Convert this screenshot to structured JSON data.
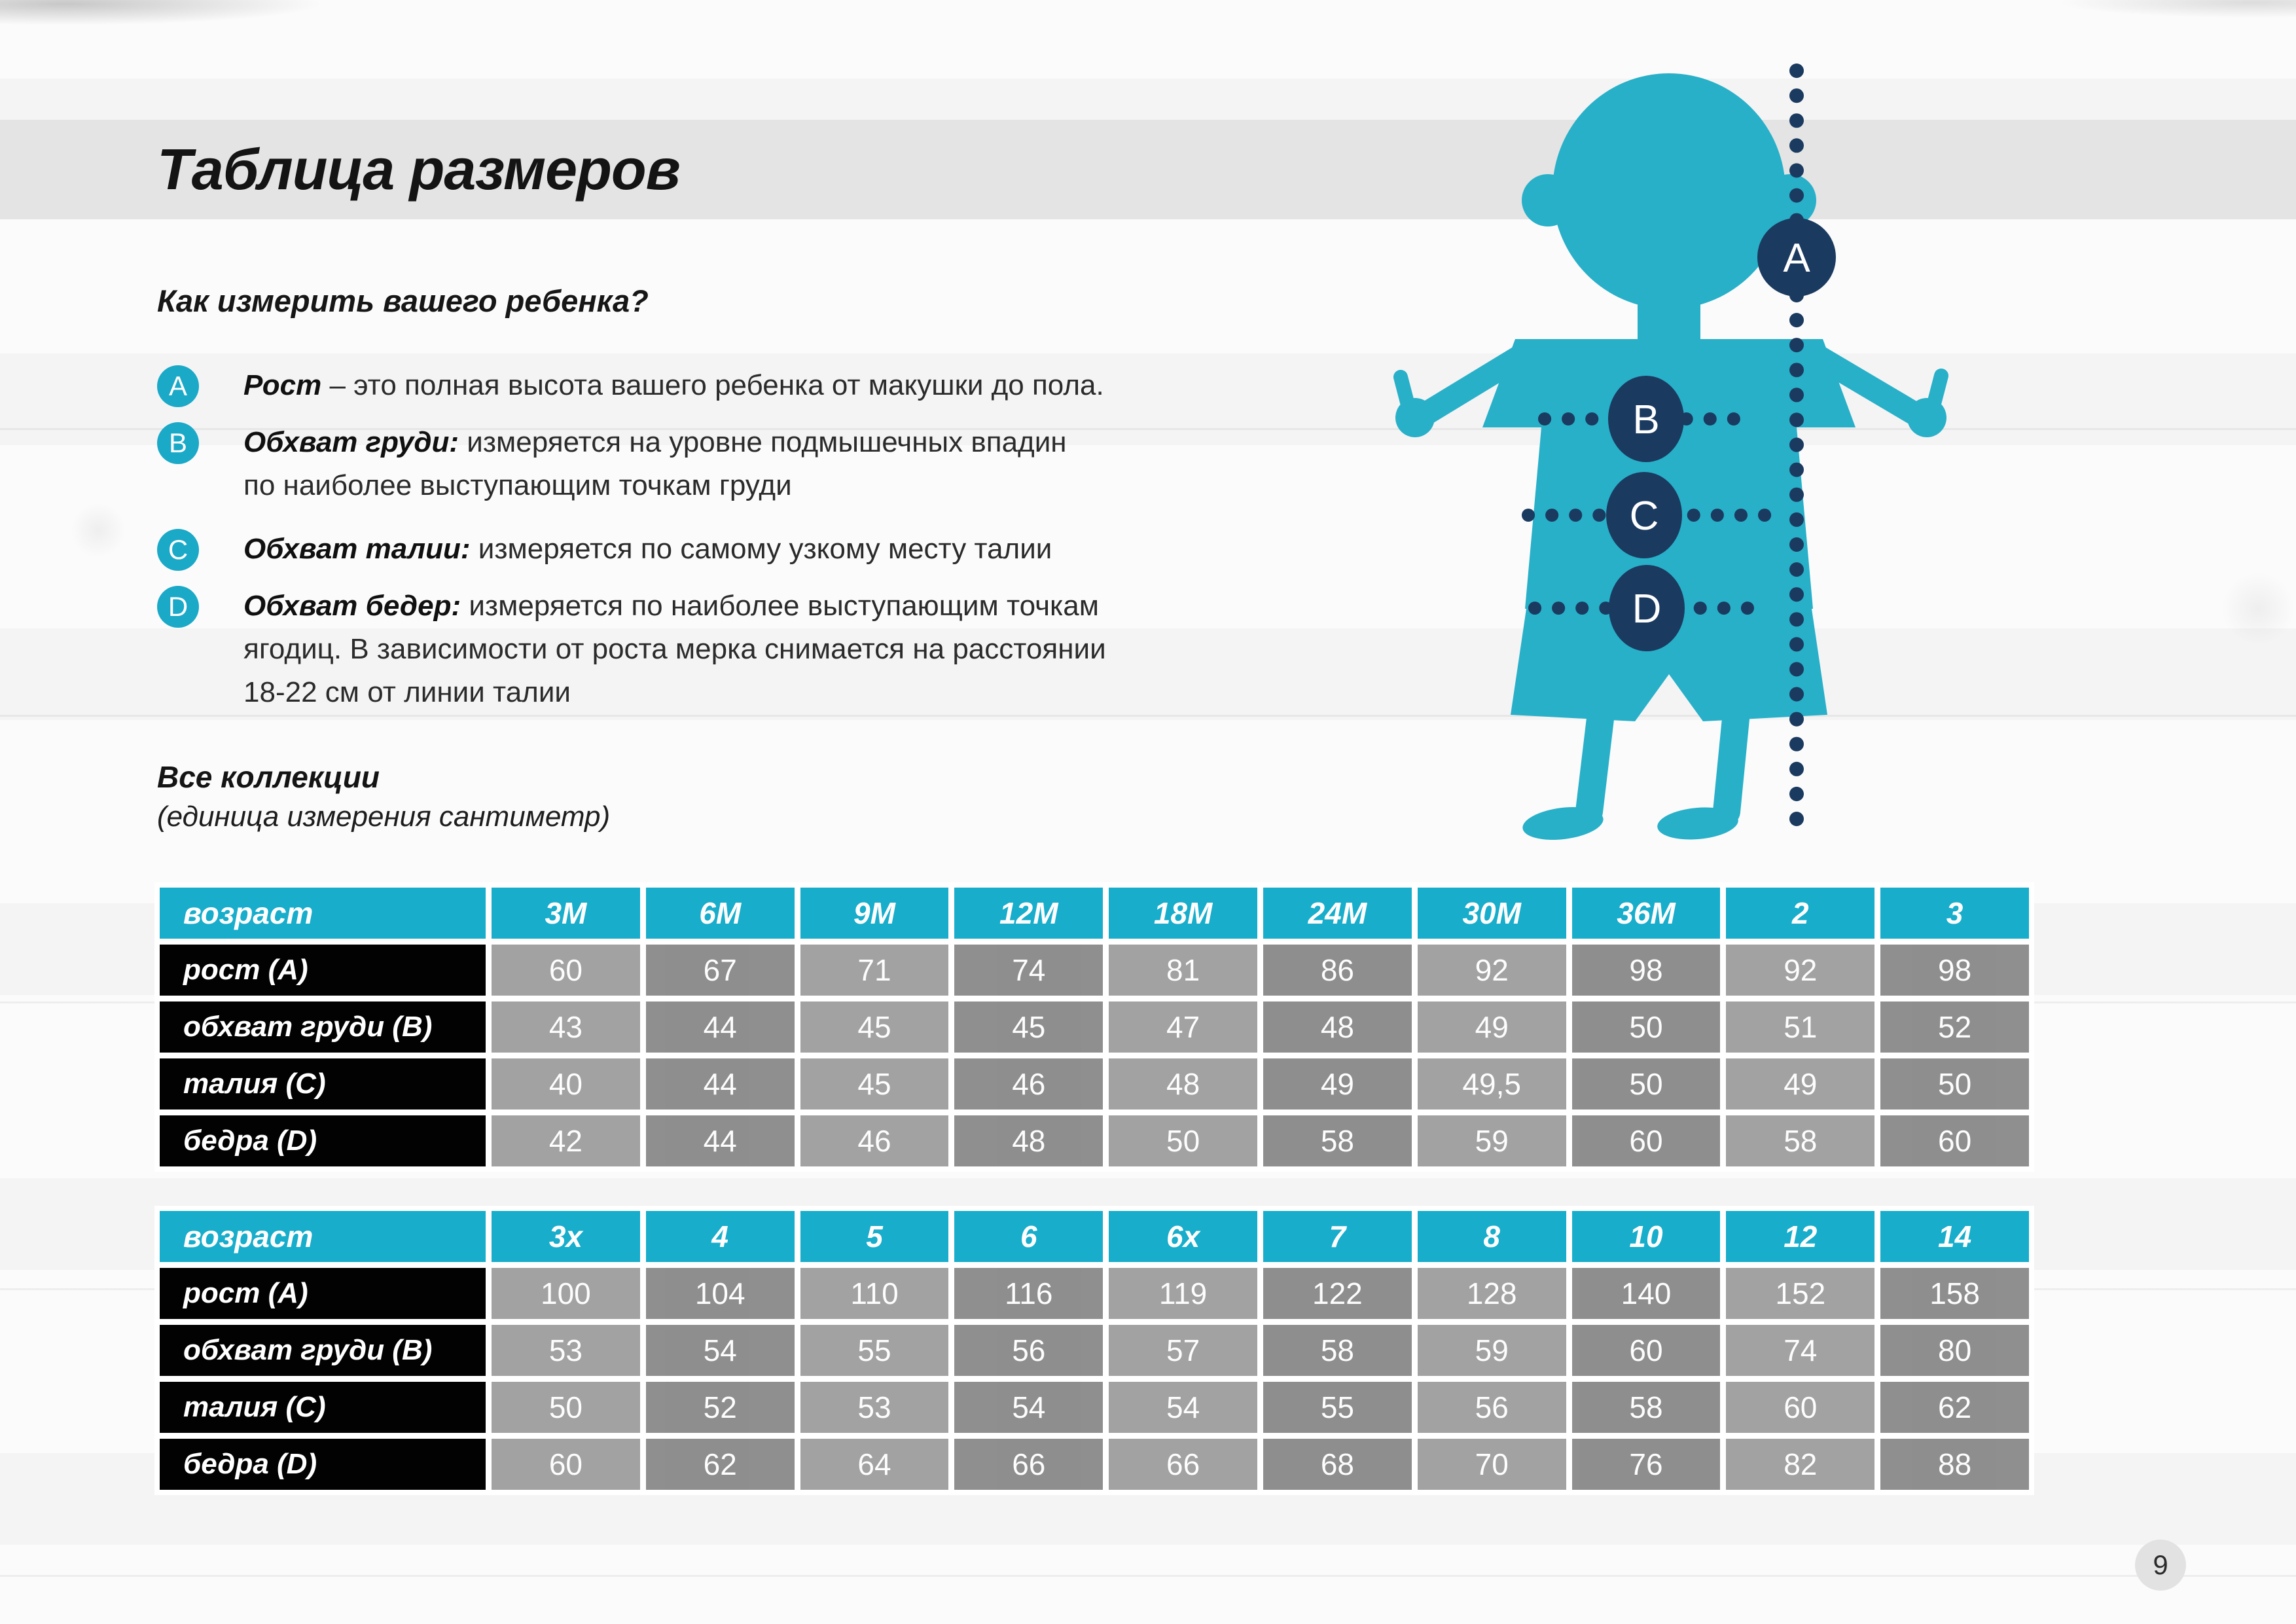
{
  "title": "Таблица размеров",
  "page_number": "9",
  "howto": {
    "heading": "Как измерить вашего ребенка?",
    "items": [
      {
        "letter": "A",
        "lead": "Рост",
        "rest": " – это полная высота вашего ребенка от макушки до пола.",
        "extra_lines": []
      },
      {
        "letter": "B",
        "lead": "Обхват груди:",
        "rest": " измеряется на уровне подмышечных впадин",
        "extra_lines": [
          "по наиболее выступающим точкам груди"
        ]
      },
      {
        "letter": "C",
        "lead": "Обхват талии:",
        "rest": " измеряется по самому узкому месту талии",
        "extra_lines": []
      },
      {
        "letter": "D",
        "lead": "Обхват бедер:",
        "rest": " измеряется по наиболее выступающим точкам",
        "extra_lines": [
          "ягодиц. В зависимости от роста мерка снимается на расстоянии",
          "18-22 см от линии талии"
        ]
      }
    ]
  },
  "collections": {
    "title": "Все коллекции",
    "subtitle": "(единица измерения сантиметр)"
  },
  "tables": [
    {
      "name": "months",
      "header": [
        "возраст",
        "3M",
        "6M",
        "9M",
        "12M",
        "18M",
        "24M",
        "30M",
        "36M",
        "2",
        "3"
      ],
      "rows": [
        {
          "label": "рост (A)",
          "values": [
            "60",
            "67",
            "71",
            "74",
            "81",
            "86",
            "92",
            "98",
            "92",
            "98"
          ]
        },
        {
          "label": "обхват груди (B)",
          "values": [
            "43",
            "44",
            "45",
            "45",
            "47",
            "48",
            "49",
            "50",
            "51",
            "52"
          ]
        },
        {
          "label": "талия (C)",
          "values": [
            "40",
            "44",
            "45",
            "46",
            "48",
            "49",
            "49,5",
            "50",
            "49",
            "50"
          ]
        },
        {
          "label": "бедра (D)",
          "values": [
            "42",
            "44",
            "46",
            "48",
            "50",
            "58",
            "59",
            "60",
            "58",
            "60"
          ]
        }
      ]
    },
    {
      "name": "years",
      "header": [
        "возраст",
        "3x",
        "4",
        "5",
        "6",
        "6x",
        "7",
        "8",
        "10",
        "12",
        "14"
      ],
      "rows": [
        {
          "label": "рост (A)",
          "values": [
            "100",
            "104",
            "110",
            "116",
            "119",
            "122",
            "128",
            "140",
            "152",
            "158"
          ]
        },
        {
          "label": "обхват груди (B)",
          "values": [
            "53",
            "54",
            "55",
            "56",
            "57",
            "58",
            "59",
            "60",
            "74",
            "80"
          ]
        },
        {
          "label": "талия (C)",
          "values": [
            "50",
            "52",
            "53",
            "54",
            "54",
            "55",
            "56",
            "58",
            "60",
            "62"
          ]
        },
        {
          "label": "бедра (D)",
          "values": [
            "60",
            "62",
            "64",
            "66",
            "66",
            "68",
            "70",
            "76",
            "82",
            "88"
          ]
        }
      ]
    }
  ],
  "figure": {
    "badges": [
      "A",
      "B",
      "C",
      "D"
    ]
  },
  "colors": {
    "teal": "#1ba9c8",
    "figure_teal": "#28b0c9",
    "navy": "#1b3a60",
    "header_teal": "#17adcb",
    "cell_light": "#9f9f9f",
    "cell_dark": "#8b8b8b",
    "band_gray": "#e4e4e4",
    "label_black": "#020202"
  }
}
